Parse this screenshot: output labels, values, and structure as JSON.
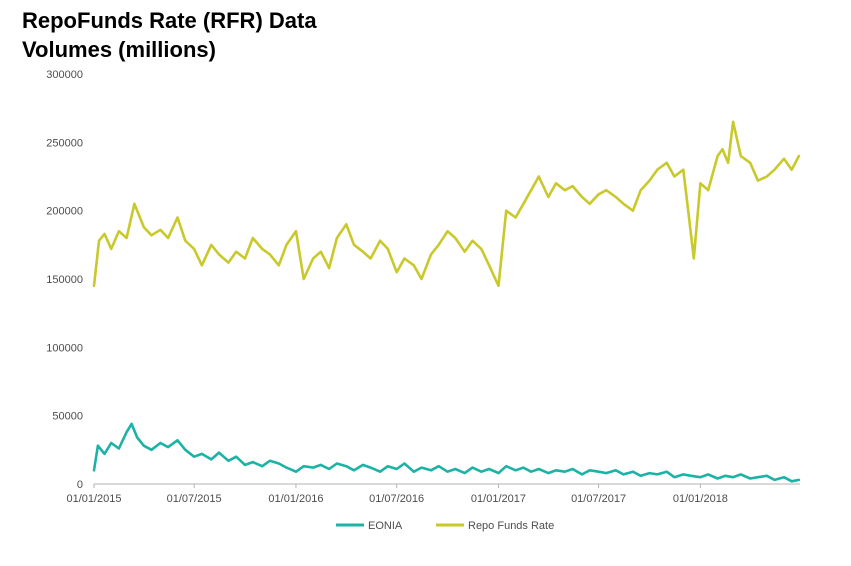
{
  "title_line1": "RepoFunds Rate (RFR) Data",
  "title_line2": "Volumes (millions)",
  "chart_data": {
    "type": "line",
    "title": "RepoFunds Rate (RFR) Data Volumes (millions)",
    "xlabel": "",
    "ylabel": "",
    "ylim": [
      0,
      300000
    ],
    "yticks": [
      0,
      50000,
      100000,
      150000,
      200000,
      250000,
      300000
    ],
    "ytick_labels": [
      "0",
      "50000",
      "100000",
      "150000",
      "200000",
      "250000",
      "300000"
    ],
    "xlim": [
      "2015-01-01",
      "2018-06-30"
    ],
    "xticks": [
      "2015-01-01",
      "2015-07-01",
      "2016-01-01",
      "2016-07-01",
      "2017-01-01",
      "2017-07-01",
      "2018-01-01"
    ],
    "xtick_labels": [
      "01/01/2015",
      "01/07/2015",
      "01/01/2016",
      "01/07/2016",
      "01/01/2017",
      "01/07/2017",
      "01/01/2018"
    ],
    "grid": false,
    "legend": "bottom",
    "series": [
      {
        "name": "EONIA",
        "color": "#1cb3a6",
        "x": [
          "2015-01-01",
          "2015-01-08",
          "2015-01-20",
          "2015-02-01",
          "2015-02-15",
          "2015-03-01",
          "2015-03-10",
          "2015-03-20",
          "2015-04-01",
          "2015-04-15",
          "2015-05-01",
          "2015-05-15",
          "2015-06-01",
          "2015-06-15",
          "2015-07-01",
          "2015-07-15",
          "2015-08-01",
          "2015-08-15",
          "2015-09-01",
          "2015-09-15",
          "2015-10-01",
          "2015-10-15",
          "2015-11-01",
          "2015-11-15",
          "2015-12-01",
          "2015-12-15",
          "2016-01-01",
          "2016-01-15",
          "2016-02-01",
          "2016-02-15",
          "2016-03-01",
          "2016-03-15",
          "2016-04-01",
          "2016-04-15",
          "2016-05-01",
          "2016-05-15",
          "2016-06-01",
          "2016-06-15",
          "2016-07-01",
          "2016-07-15",
          "2016-08-01",
          "2016-08-15",
          "2016-09-01",
          "2016-09-15",
          "2016-10-01",
          "2016-10-15",
          "2016-11-01",
          "2016-11-15",
          "2016-12-01",
          "2016-12-15",
          "2017-01-01",
          "2017-01-15",
          "2017-02-01",
          "2017-02-15",
          "2017-03-01",
          "2017-03-15",
          "2017-04-01",
          "2017-04-15",
          "2017-05-01",
          "2017-05-15",
          "2017-06-01",
          "2017-06-15",
          "2017-07-01",
          "2017-07-15",
          "2017-08-01",
          "2017-08-15",
          "2017-09-01",
          "2017-09-15",
          "2017-10-01",
          "2017-10-15",
          "2017-11-01",
          "2017-11-15",
          "2017-12-01",
          "2017-12-15",
          "2018-01-01",
          "2018-01-15",
          "2018-02-01",
          "2018-02-15",
          "2018-03-01",
          "2018-03-15",
          "2018-04-01",
          "2018-04-15",
          "2018-05-01",
          "2018-05-15",
          "2018-06-01",
          "2018-06-15",
          "2018-06-28"
        ],
        "values": [
          10000,
          28000,
          22000,
          30000,
          26000,
          38000,
          44000,
          34000,
          28000,
          25000,
          30000,
          27000,
          32000,
          25000,
          20000,
          22000,
          18000,
          23000,
          17000,
          20000,
          14000,
          16000,
          13000,
          17000,
          15000,
          12000,
          9000,
          13000,
          12000,
          14000,
          11000,
          15000,
          13000,
          10000,
          14000,
          12000,
          9000,
          13000,
          11000,
          15000,
          9000,
          12000,
          10000,
          13000,
          9000,
          11000,
          8000,
          12000,
          9000,
          11000,
          8000,
          13000,
          10000,
          12000,
          9000,
          11000,
          8000,
          10000,
          9000,
          11000,
          7000,
          10000,
          9000,
          8000,
          10000,
          7000,
          9000,
          6000,
          8000,
          7000,
          9000,
          5000,
          7000,
          6000,
          5000,
          7000,
          4000,
          6000,
          5000,
          7000,
          4000,
          5000,
          6000,
          3000,
          5000,
          2000,
          3000
        ]
      },
      {
        "name": "Repo Funds Rate",
        "color": "#c9c92c",
        "x": [
          "2015-01-01",
          "2015-01-10",
          "2015-01-20",
          "2015-02-01",
          "2015-02-15",
          "2015-03-01",
          "2015-03-15",
          "2015-04-01",
          "2015-04-15",
          "2015-05-01",
          "2015-05-15",
          "2015-06-01",
          "2015-06-15",
          "2015-07-01",
          "2015-07-15",
          "2015-08-01",
          "2015-08-15",
          "2015-09-01",
          "2015-09-15",
          "2015-10-01",
          "2015-10-15",
          "2015-11-01",
          "2015-11-15",
          "2015-12-01",
          "2015-12-15",
          "2016-01-01",
          "2016-01-15",
          "2016-02-01",
          "2016-02-15",
          "2016-03-01",
          "2016-03-15",
          "2016-04-01",
          "2016-04-15",
          "2016-05-01",
          "2016-05-15",
          "2016-06-01",
          "2016-06-15",
          "2016-07-01",
          "2016-07-15",
          "2016-08-01",
          "2016-08-15",
          "2016-09-01",
          "2016-09-15",
          "2016-10-01",
          "2016-10-15",
          "2016-11-01",
          "2016-11-15",
          "2016-12-01",
          "2016-12-15",
          "2017-01-01",
          "2017-01-15",
          "2017-02-01",
          "2017-02-15",
          "2017-03-01",
          "2017-03-15",
          "2017-04-01",
          "2017-04-15",
          "2017-05-01",
          "2017-05-15",
          "2017-06-01",
          "2017-06-15",
          "2017-07-01",
          "2017-07-15",
          "2017-08-01",
          "2017-08-15",
          "2017-09-01",
          "2017-09-15",
          "2017-10-01",
          "2017-10-15",
          "2017-11-01",
          "2017-11-15",
          "2017-12-01",
          "2017-12-10",
          "2017-12-20",
          "2018-01-01",
          "2018-01-15",
          "2018-02-01",
          "2018-02-10",
          "2018-02-20",
          "2018-03-01",
          "2018-03-15",
          "2018-04-01",
          "2018-04-15",
          "2018-05-01",
          "2018-05-15",
          "2018-06-01",
          "2018-06-15",
          "2018-06-28"
        ],
        "values": [
          145000,
          178000,
          183000,
          172000,
          185000,
          180000,
          205000,
          188000,
          182000,
          186000,
          180000,
          195000,
          178000,
          172000,
          160000,
          175000,
          168000,
          162000,
          170000,
          165000,
          180000,
          172000,
          168000,
          160000,
          175000,
          185000,
          150000,
          165000,
          170000,
          158000,
          180000,
          190000,
          175000,
          170000,
          165000,
          178000,
          172000,
          155000,
          165000,
          160000,
          150000,
          168000,
          175000,
          185000,
          180000,
          170000,
          178000,
          172000,
          160000,
          145000,
          200000,
          195000,
          205000,
          215000,
          225000,
          210000,
          220000,
          215000,
          218000,
          210000,
          205000,
          212000,
          215000,
          210000,
          205000,
          200000,
          215000,
          222000,
          230000,
          235000,
          225000,
          230000,
          200000,
          165000,
          220000,
          215000,
          240000,
          245000,
          235000,
          265000,
          240000,
          235000,
          222000,
          225000,
          230000,
          238000,
          230000,
          240000
        ]
      }
    ]
  }
}
